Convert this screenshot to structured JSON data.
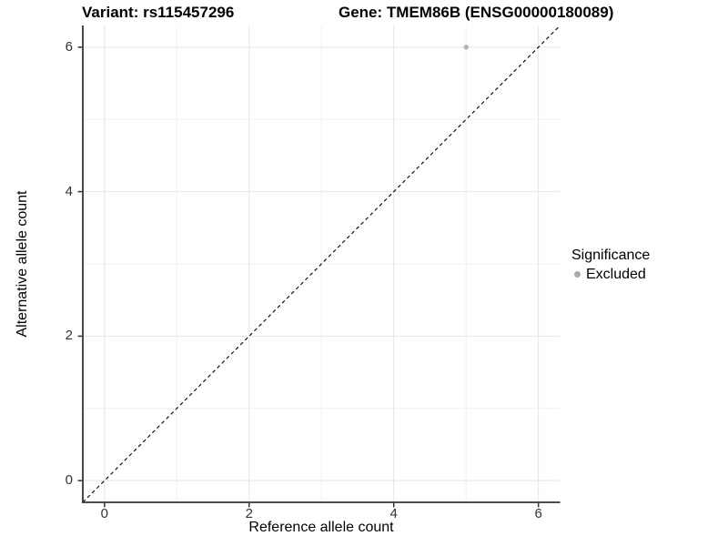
{
  "header": {
    "title_left": "Variant: rs115457296",
    "title_right": "Gene: TMEM86B (ENSG00000180089)"
  },
  "chart_data": {
    "type": "scatter",
    "xlabel": "Reference allele count",
    "ylabel": "Alternative allele count",
    "xlim": [
      -0.3,
      6.3
    ],
    "ylim": [
      -0.3,
      6.3
    ],
    "x_ticks": [
      0,
      2,
      4,
      6
    ],
    "y_ticks": [
      0,
      2,
      4,
      6
    ],
    "x_minor_ticks": [
      1,
      3,
      5
    ],
    "y_minor_ticks": [
      1,
      3,
      5
    ],
    "grid": "major+minor",
    "series": [
      {
        "name": "Excluded",
        "color": "#b3b3b3",
        "points": [
          {
            "x": 5,
            "y": 6
          }
        ]
      }
    ],
    "reference_line": {
      "type": "identity",
      "slope": 1,
      "intercept": 0,
      "style": "dashed",
      "color": "#000000"
    },
    "legend": {
      "title": "Significance",
      "position": "right",
      "items": [
        {
          "label": "Excluded",
          "marker_color": "#aaaaaa"
        }
      ]
    },
    "colors": {
      "grid_major": "#e4e4e4",
      "grid_minor": "#f1f1f1",
      "axis_line": "#333333",
      "tick_mark": "#333333",
      "tick_text": "#333333",
      "background": "#ffffff"
    }
  }
}
